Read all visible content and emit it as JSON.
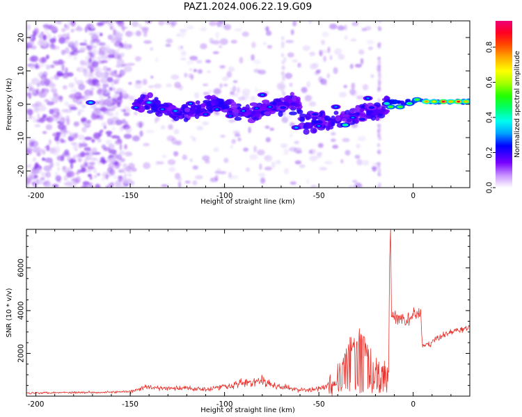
{
  "figure": {
    "title": "PAZ1.2024.006.22.19.G09"
  },
  "chart_data": [
    {
      "type": "heatmap",
      "title": "PAZ1.2024.006.22.19.G09",
      "xlabel": "Height of straight line (km)",
      "ylabel": "Frequency (Hz)",
      "xlim": [
        -205,
        30
      ],
      "ylim": [
        -25,
        25
      ],
      "xticks": [
        -200,
        -150,
        -100,
        -50,
        0
      ],
      "yticks": [
        -20,
        -10,
        0,
        10,
        20
      ],
      "colorbar": {
        "label": "Normalized spectral amplitude",
        "range": [
          0.0,
          0.95
        ],
        "ticks": [
          0.0,
          0.2,
          0.4,
          0.6,
          0.8
        ]
      },
      "blobs": [
        [
          -171,
          0.5,
          0.35
        ],
        [
          -147,
          -1,
          0.3
        ],
        [
          -140,
          0.5,
          0.35
        ],
        [
          -133,
          -1.5,
          0.3
        ],
        [
          -126,
          -2,
          0.32
        ],
        [
          -118,
          0.2,
          0.3
        ],
        [
          -110,
          -3,
          0.28
        ],
        [
          -104,
          -1.5,
          0.3
        ],
        [
          -97,
          -3.5,
          0.28
        ],
        [
          -90,
          -2,
          0.3
        ],
        [
          -83,
          -1.2,
          0.28
        ],
        [
          -80,
          2.8,
          0.3
        ],
        [
          -76,
          -0.8,
          0.3
        ],
        [
          -69,
          -1,
          0.25
        ],
        [
          -62,
          -7,
          0.32
        ],
        [
          -52,
          -3,
          0.25
        ],
        [
          -50,
          -6.5,
          0.3
        ],
        [
          -41,
          -0.8,
          0.3
        ],
        [
          -36,
          -6.2,
          0.45
        ],
        [
          -32,
          -4,
          0.3
        ],
        [
          -27,
          -4.5,
          0.25
        ],
        [
          -24,
          1.8,
          0.3
        ],
        [
          -22,
          -1,
          0.25
        ],
        [
          -14,
          0.2,
          0.42
        ],
        [
          -12,
          -0.8,
          0.55
        ],
        [
          -7,
          -0.8,
          0.55
        ],
        [
          -2,
          0.2,
          0.5
        ],
        [
          2,
          1.4,
          0.55
        ],
        [
          7,
          0.8,
          0.75
        ],
        [
          11,
          0.8,
          0.7
        ],
        [
          16,
          0.8,
          0.92
        ],
        [
          20,
          0.8,
          0.72
        ],
        [
          24,
          0.8,
          0.88
        ],
        [
          28,
          0.8,
          0.72
        ]
      ]
    },
    {
      "type": "line",
      "xlabel": "Height of straight line (km)",
      "ylabel": "SNR (10 * v/v)",
      "xlim": [
        -205,
        30
      ],
      "ylim": [
        0,
        7800
      ],
      "xticks": [
        -200,
        -150,
        -100,
        -50,
        0
      ],
      "yticks": [
        2000,
        4000,
        6000
      ],
      "series": [
        {
          "color": "#e8302a",
          "x": [
            -205,
            -190,
            -170,
            -150,
            -142,
            -130,
            -120,
            -110,
            -100,
            -92,
            -85,
            -80,
            -72,
            -62,
            -55,
            -48,
            -42,
            -38,
            -34,
            -30,
            -26,
            -22,
            -18,
            -15,
            -13,
            -12.5,
            -12,
            -11.5,
            -10,
            -7,
            -4,
            -1,
            2,
            4,
            5,
            8,
            11,
            15,
            20,
            25,
            30
          ],
          "y": [
            150,
            170,
            180,
            200,
            420,
            350,
            380,
            330,
            460,
            600,
            650,
            700,
            450,
            320,
            280,
            380,
            600,
            1500,
            2200,
            2500,
            2600,
            1400,
            1300,
            1500,
            1400,
            6200,
            7700,
            3800,
            3700,
            3600,
            3500,
            3700,
            3900,
            3800,
            2300,
            2400,
            2600,
            2800,
            3000,
            3100,
            3200
          ]
        }
      ]
    }
  ]
}
